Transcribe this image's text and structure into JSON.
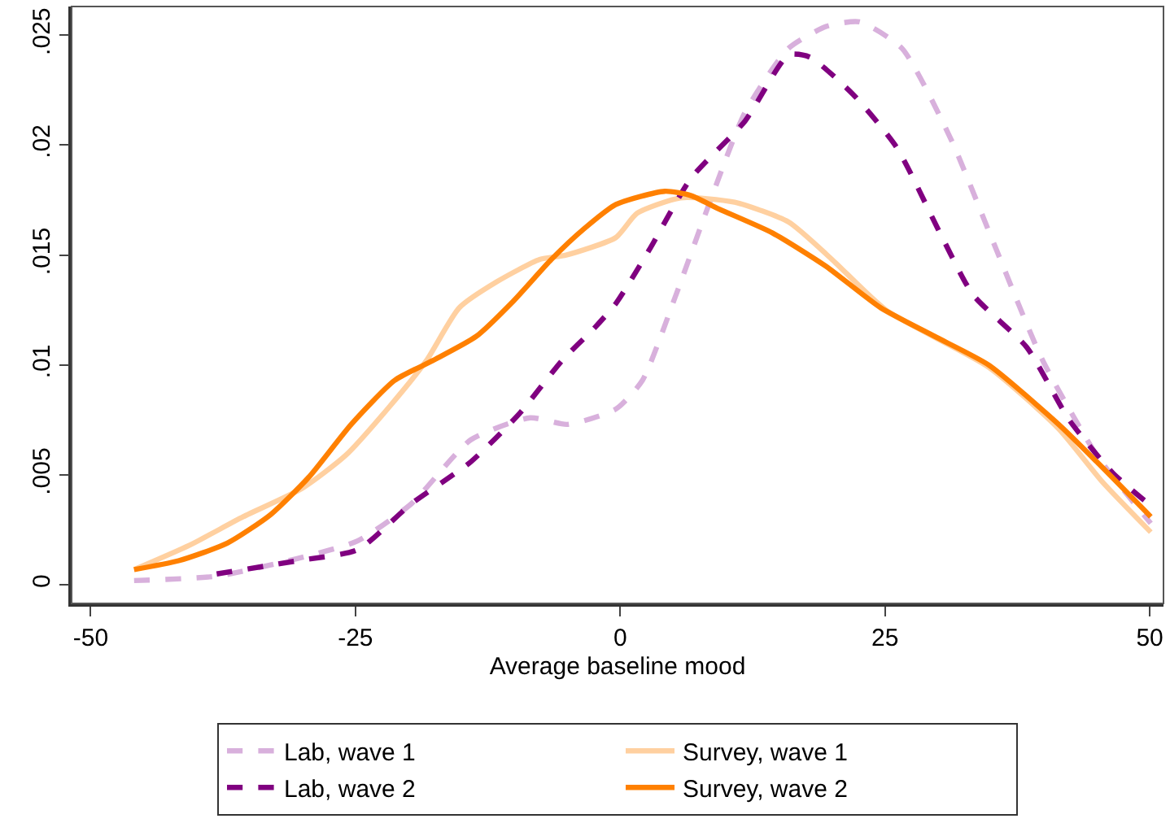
{
  "chart_data": {
    "type": "line",
    "xlabel": "Average baseline mood",
    "xlim": [
      -51.8,
      51.3
    ],
    "ylim": [
      -0.00084,
      0.0263
    ],
    "xticks": [
      -50,
      -25,
      0,
      25,
      50
    ],
    "yticks": [
      0,
      {
        "value": 0.005,
        "label": ".005"
      },
      {
        "value": 0.01,
        "label": ".01"
      },
      {
        "value": 0.015,
        "label": ".015"
      },
      {
        "value": 0.02,
        "label": ".02"
      },
      {
        "value": 0.025,
        "label": ".025"
      }
    ],
    "legend": "bottom",
    "marker": "none",
    "series": [
      {
        "name": "Lab, wave 1",
        "color": "#d8b0dc",
        "line_style": "dashed",
        "x": [
          -45.9,
          -38.1,
          -30.5,
          -24.8,
          -19.7,
          -14.1,
          -8.5,
          -5,
          -0.4,
          2.1,
          5.2,
          8.3,
          11.8,
          15.9,
          19.5,
          22.6,
          26.6,
          31.2,
          35.3,
          39.9,
          45,
          50.1
        ],
        "values": [
          0.0002,
          0.0004,
          0.0012,
          0.002,
          0.0037,
          0.0066,
          0.0076,
          0.0073,
          0.008,
          0.0093,
          0.0131,
          0.0172,
          0.0215,
          0.0244,
          0.0254,
          0.0256,
          0.0244,
          0.0203,
          0.0155,
          0.0102,
          0.0059,
          0.0028
        ]
      },
      {
        "name": "Survey, wave 1",
        "color": "#ffd0a0",
        "line_style": "solid",
        "x": [
          -45.9,
          -40.7,
          -35.6,
          -30,
          -25.9,
          -21.8,
          -18.3,
          -15.2,
          -11.6,
          -7.6,
          -5.1,
          -0.4,
          1.6,
          5.7,
          10.8,
          15.9,
          20,
          25.1,
          34.8,
          41.4,
          45.5,
          50.1
        ],
        "values": [
          0.0007,
          0.0018,
          0.0031,
          0.0044,
          0.0059,
          0.0081,
          0.0102,
          0.0126,
          0.0138,
          0.0148,
          0.015,
          0.0158,
          0.0169,
          0.0176,
          0.0174,
          0.0165,
          0.0148,
          0.0125,
          0.0099,
          0.0071,
          0.0047,
          0.0024
        ]
      },
      {
        "name": "Lab, wave 2",
        "color": "#800080",
        "line_style": "dashed",
        "x": [
          -38.1,
          -30.5,
          -24.8,
          -19.7,
          -14.1,
          -9.5,
          -5.5,
          -2.4,
          -0.4,
          2.7,
          6.7,
          11.8,
          15.9,
          17.9,
          22,
          26.1,
          30.2,
          33.3,
          38.4,
          42.4,
          46.5,
          50.1
        ],
        "values": [
          0.0005,
          0.0011,
          0.0016,
          0.0037,
          0.0056,
          0.0078,
          0.0102,
          0.0117,
          0.0128,
          0.0152,
          0.0185,
          0.0211,
          0.0241,
          0.024,
          0.0223,
          0.0199,
          0.016,
          0.0132,
          0.0108,
          0.0075,
          0.0051,
          0.0036
        ]
      },
      {
        "name": "Survey, wave 2",
        "color": "#ff8000",
        "line_style": "solid",
        "x": [
          -45.9,
          -41.7,
          -37.1,
          -33,
          -29.4,
          -25.4,
          -21.3,
          -17.7,
          -13.6,
          -10.1,
          -6.5,
          -3.4,
          -0.4,
          4.2,
          6.7,
          9.3,
          14.4,
          19.4,
          24.6,
          29.7,
          34.8,
          41.4,
          45,
          50.1
        ],
        "values": [
          0.0007,
          0.0011,
          0.0019,
          0.0032,
          0.0049,
          0.0073,
          0.0093,
          0.0102,
          0.0113,
          0.0129,
          0.0148,
          0.0162,
          0.0173,
          0.0179,
          0.0177,
          0.0171,
          0.016,
          0.0145,
          0.0126,
          0.0113,
          0.01,
          0.0073,
          0.0056,
          0.0031
        ]
      }
    ]
  }
}
